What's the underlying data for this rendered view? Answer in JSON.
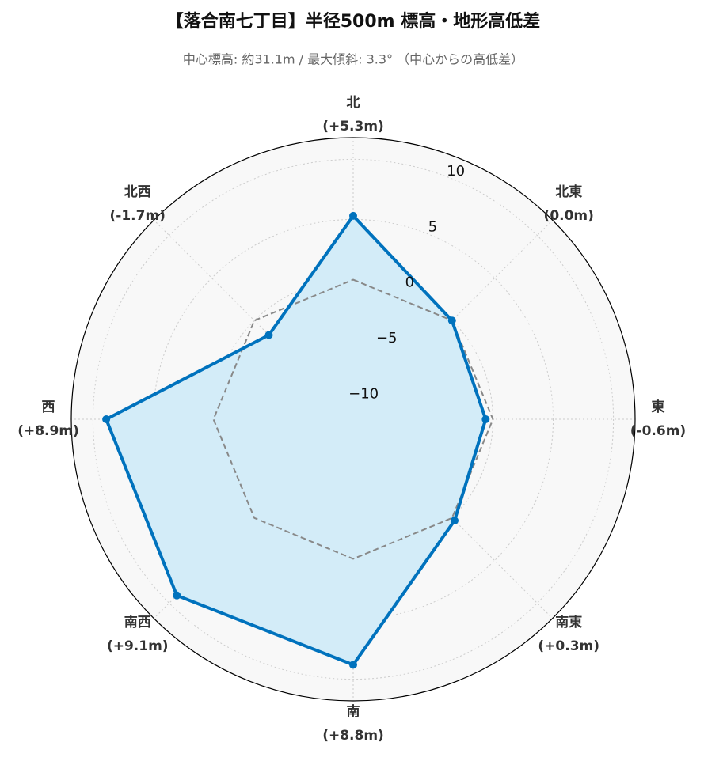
{
  "chart_data": {
    "type": "radar",
    "title": "【落合南七丁目】半径500m 標高・地形高低差",
    "subtitle": "中心標高: 約31.1m / 最大傾斜: 3.3°  （中心からの高低差）",
    "categories": [
      "北",
      "北東",
      "東",
      "南東",
      "南",
      "南西",
      "西",
      "北西"
    ],
    "series": [
      {
        "color": "#0072bd",
        "fill": "#d3ecf8",
        "values": [
          5.3,
          0.0,
          -0.6,
          0.3,
          8.8,
          9.1,
          8.9,
          -1.7
        ],
        "value_labels": [
          "(+5.3m)",
          "(0.0m)",
          "(-0.6m)",
          "(+0.3m)",
          "(+8.8m)",
          "(+9.1m)",
          "(+8.9m)",
          "(-1.7m)"
        ]
      },
      {
        "color": "#888888",
        "dashed": true,
        "values": [
          0,
          0,
          0,
          0,
          0,
          0,
          0,
          0
        ]
      }
    ],
    "ylim": [
      -11.6,
      11.8
    ],
    "yticks": [
      {
        "value": -10,
        "label": "−10"
      },
      {
        "value": -5,
        "label": "−5"
      },
      0,
      5,
      10
    ],
    "grid": true
  }
}
